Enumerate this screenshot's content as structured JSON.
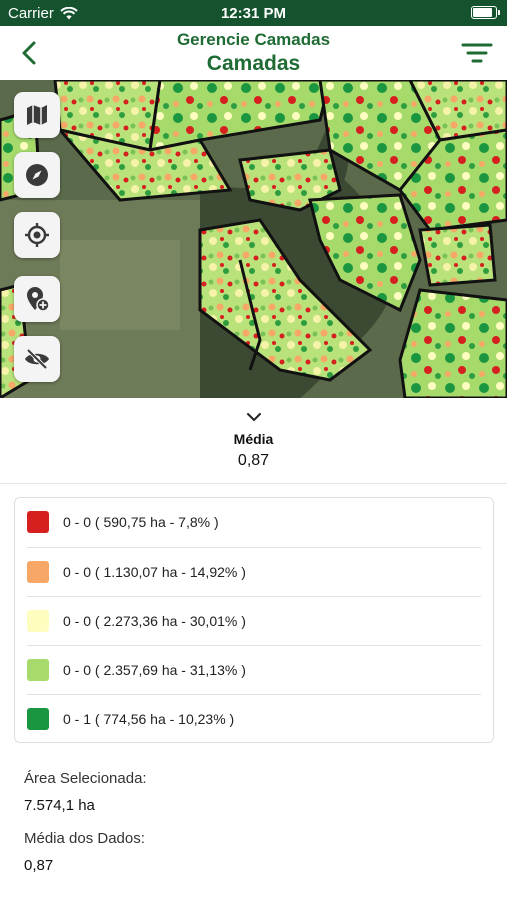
{
  "status_bar": {
    "carrier": "Carrier",
    "time": "12:31 PM",
    "battery_level": 0.9
  },
  "header": {
    "subtitle": "Gerencie Camadas",
    "title": "Camadas"
  },
  "map_controls": [
    {
      "name": "layers-map-button",
      "icon": "map-icon"
    },
    {
      "name": "compass-button",
      "icon": "compass-icon"
    },
    {
      "name": "locate-button",
      "icon": "crosshair-icon"
    },
    {
      "name": "add-pin-button",
      "icon": "add-location-icon"
    },
    {
      "name": "visibility-toggle-button",
      "icon": "eye-off-icon"
    }
  ],
  "summary": {
    "label": "Média",
    "value": "0,87"
  },
  "legend": [
    {
      "range": "0 - 0",
      "detail": "( 590,75 ha - 7,8% )",
      "color": "#d62020"
    },
    {
      "range": "0 - 0",
      "detail": "( 1.130,07 ha - 14,92% )",
      "color": "#f7a866"
    },
    {
      "range": "0 - 0",
      "detail": "( 2.273,36 ha - 30,01% )",
      "color": "#fefdc0"
    },
    {
      "range": "0 - 0",
      "detail": "( 2.357,69 ha - 31,13% )",
      "color": "#a6db6c"
    },
    {
      "range": "0 - 1",
      "detail": "( 774,56 ha - 10,23% )",
      "color": "#1a9641"
    }
  ],
  "area": {
    "label": "Área Selecionada:",
    "value": "7.574,1 ha"
  },
  "average": {
    "label": "Média dos Dados:",
    "value": "0,87"
  },
  "colors": {
    "header_bg": "#14532d",
    "accent": "#1f6b33"
  }
}
